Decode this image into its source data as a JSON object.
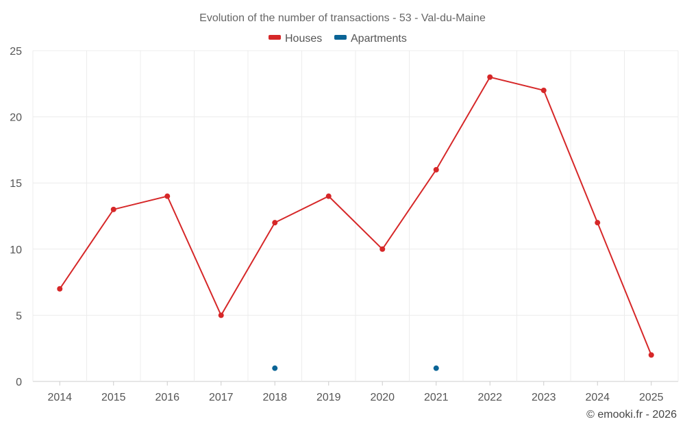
{
  "chart_data": {
    "type": "line",
    "title": "Evolution of the number of transactions - 53 - Val-du-Maine",
    "x": [
      "2014",
      "2015",
      "2016",
      "2017",
      "2018",
      "2019",
      "2020",
      "2021",
      "2022",
      "2023",
      "2024",
      "2025"
    ],
    "xlabel": "",
    "ylabel": "",
    "ylim": [
      0,
      25
    ],
    "yticks": [
      "0",
      "5",
      "10",
      "15",
      "20",
      "25"
    ],
    "grid": true,
    "legend_position": "top-center",
    "series": [
      {
        "name": "Houses",
        "color": "#d62728",
        "values": [
          7,
          13,
          14,
          5,
          12,
          14,
          10,
          16,
          23,
          22,
          12,
          2
        ],
        "show_line": true
      },
      {
        "name": "Apartments",
        "color": "#0a6496",
        "values": [
          null,
          null,
          null,
          null,
          1,
          null,
          null,
          1,
          null,
          null,
          null,
          null
        ],
        "show_line": false
      }
    ]
  },
  "credit": "© emooki.fr - 2026"
}
